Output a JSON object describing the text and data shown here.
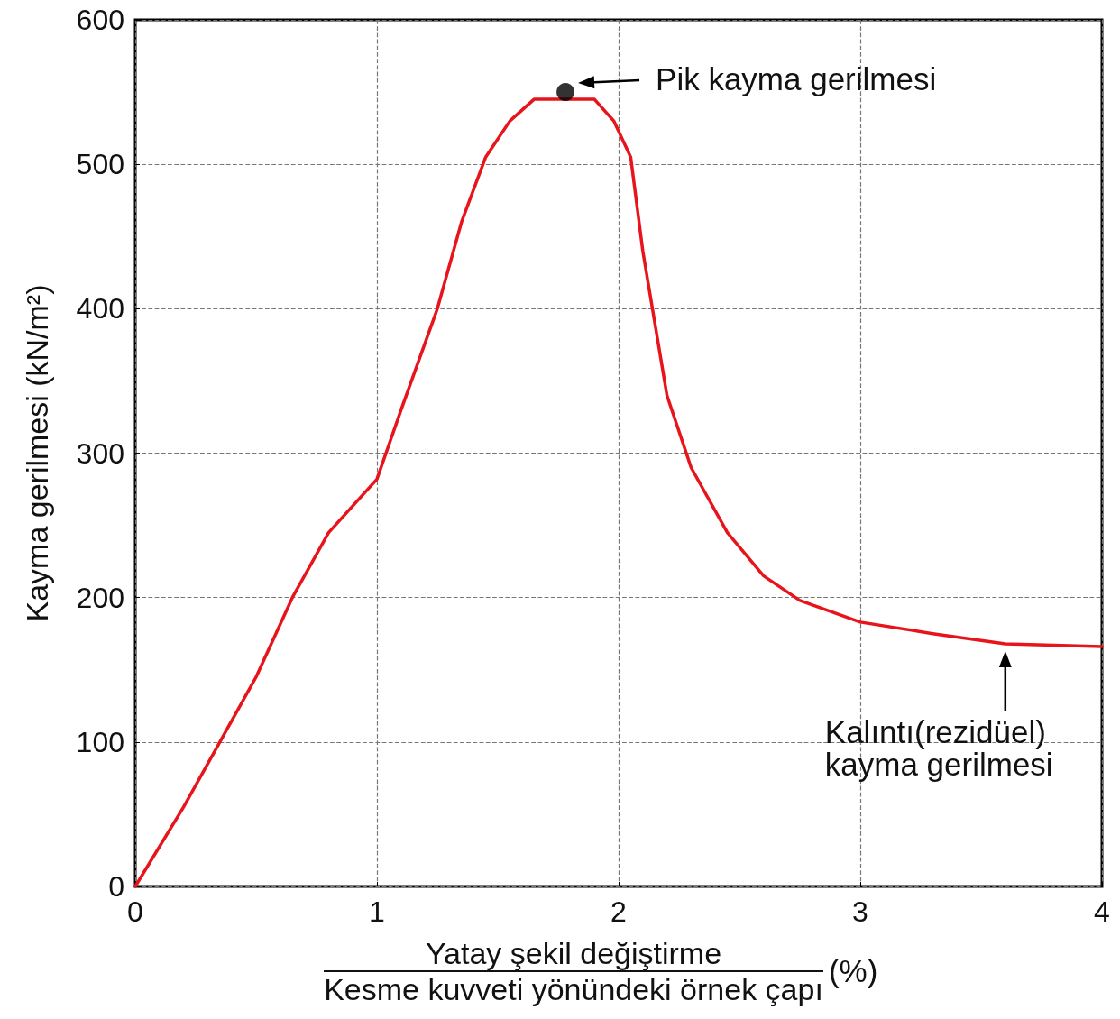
{
  "chart_data": {
    "type": "line",
    "xlabel": "Yatay şekil değiştirme\nKesme kuvveti yönündeki örnek çapı",
    "ylabel": "Kayma gerilmesi (kN/m²)",
    "xlim": [
      0,
      4
    ],
    "xticks": [
      0,
      1,
      2,
      3,
      4
    ],
    "ylim": [
      0,
      600
    ],
    "yticks": [
      0,
      100,
      200,
      300,
      400,
      500,
      600
    ],
    "grid": true,
    "marker": "none",
    "line_style": "solid",
    "series": [
      {
        "color": "#e8141b",
        "x": [
          0,
          0.2,
          0.35,
          0.5,
          0.65,
          0.8,
          1.0,
          1.1,
          1.25,
          1.35,
          1.45,
          1.55,
          1.65,
          1.9,
          1.98,
          2.05,
          2.1,
          2.15,
          2.2,
          2.3,
          2.45,
          2.6,
          2.75,
          3.0,
          3.3,
          3.6,
          4.0
        ],
        "values": [
          0,
          55,
          100,
          145,
          200,
          245,
          282,
          330,
          400,
          460,
          505,
          530,
          545,
          545,
          530,
          505,
          440,
          390,
          340,
          290,
          245,
          215,
          198,
          183,
          175,
          168,
          166
        ]
      },
      {
        "type": "scatter",
        "marker": "circle",
        "color": "#000000",
        "x": [
          1.78
        ],
        "values": [
          550
        ]
      }
    ],
    "annotations": [
      {
        "text": "Pik kayma gerilmesi",
        "x": 1.78,
        "y": 550
      },
      {
        "text": "Kalıntı(rezidüel)\nkayma gerilmesi",
        "x": 3.6,
        "y": 168
      },
      "(%)"
    ]
  }
}
